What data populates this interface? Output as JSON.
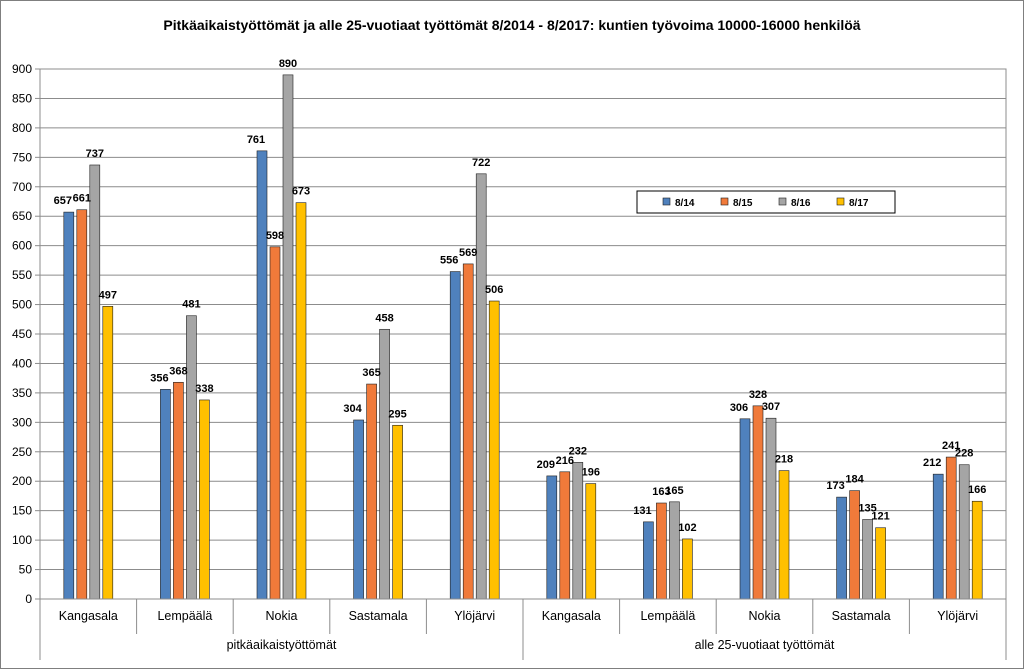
{
  "chart_data": {
    "type": "bar",
    "title": "Pitkäaikaistyöttömät ja alle 25-vuotiaat työttömät 8/2014 - 8/2017: kuntien työvoima 10000-16000 henkilöä",
    "ylim": [
      0,
      900
    ],
    "yticks": [
      0,
      50,
      100,
      150,
      200,
      250,
      300,
      350,
      400,
      450,
      500,
      550,
      600,
      650,
      700,
      750,
      800,
      850,
      900
    ],
    "grid": true,
    "legend_position": "right",
    "groups": [
      {
        "label": "pitkäaikaistyöttömät",
        "categories": [
          "Kangasala",
          "Lempäälä",
          "Nokia",
          "Sastamala",
          "Ylöjärvi"
        ]
      },
      {
        "label": "alle 25-vuotiaat työttömät",
        "categories": [
          "Kangasala",
          "Lempäälä",
          "Nokia",
          "Sastamala",
          "Ylöjärvi"
        ]
      }
    ],
    "categories": [
      "Kangasala",
      "Lempäälä",
      "Nokia",
      "Sastamala",
      "Ylöjärvi",
      "Kangasala",
      "Lempäälä",
      "Nokia",
      "Sastamala",
      "Ylöjärvi"
    ],
    "series": [
      {
        "name": "8/14",
        "color": "#4f81bd",
        "values": [
          657,
          356,
          761,
          304,
          556,
          209,
          131,
          306,
          173,
          212
        ]
      },
      {
        "name": "8/15",
        "color": "#f07a3a",
        "values": [
          661,
          368,
          598,
          365,
          569,
          216,
          163,
          328,
          184,
          241
        ]
      },
      {
        "name": "8/16",
        "color": "#a5a5a5",
        "values": [
          737,
          481,
          890,
          458,
          722,
          232,
          165,
          307,
          135,
          228
        ]
      },
      {
        "name": "8/17",
        "color": "#ffc000",
        "values": [
          497,
          338,
          673,
          295,
          506,
          196,
          102,
          218,
          121,
          166
        ]
      }
    ]
  }
}
